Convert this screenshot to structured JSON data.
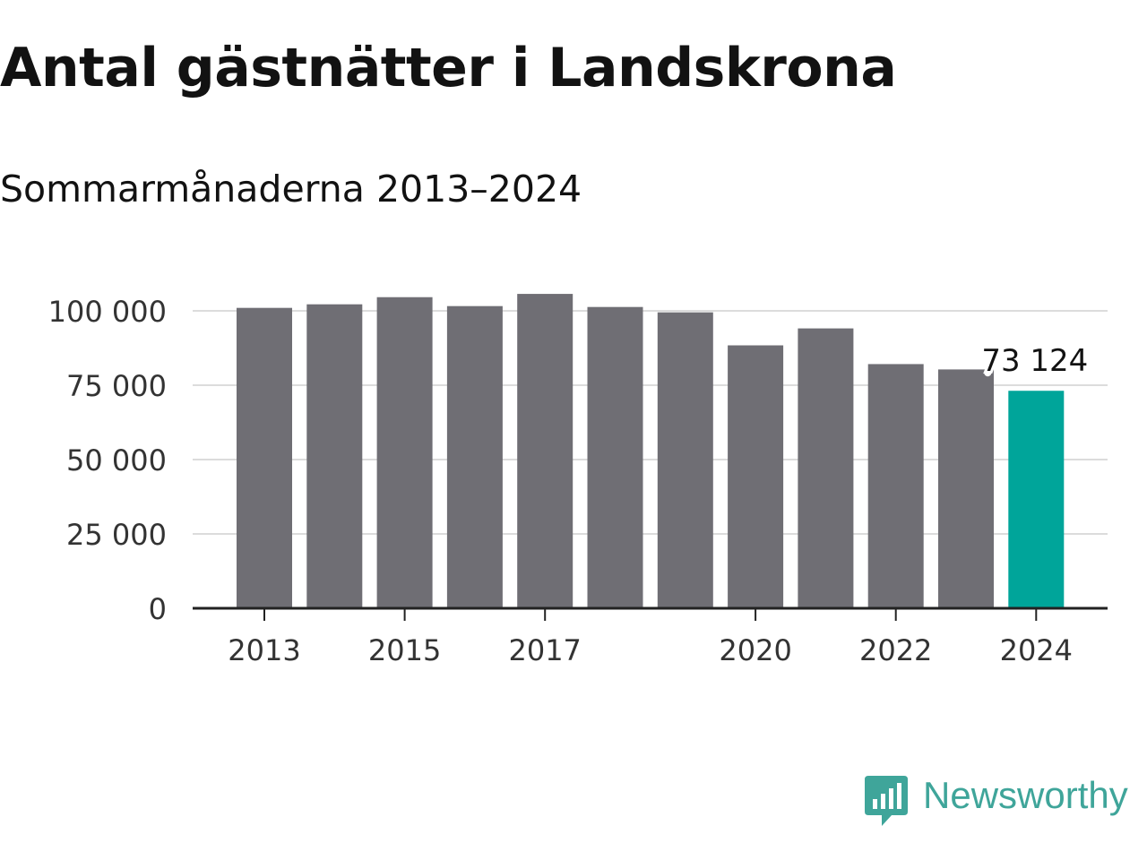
{
  "title": "Antal gästnätter i Landskrona",
  "subtitle": "Sommarmånaderna 2013–2024",
  "chart_data": {
    "type": "bar",
    "categories": [
      "2013",
      "2014",
      "2015",
      "2016",
      "2017",
      "2018",
      "2019",
      "2020",
      "2021",
      "2022",
      "2023",
      "2024"
    ],
    "values": [
      101000,
      102200,
      104600,
      101600,
      105700,
      101300,
      99500,
      88400,
      94100,
      82100,
      80300,
      73124
    ],
    "x_tick_labels": [
      "2013",
      "2015",
      "2017",
      "2020",
      "2022",
      "2024"
    ],
    "y_ticks": [
      0,
      25000,
      50000,
      75000,
      100000
    ],
    "y_tick_labels": [
      "0",
      "25 000",
      "50 000",
      "75 000",
      "100 000"
    ],
    "ylim": [
      0,
      110000
    ],
    "grid": true,
    "highlight_index": 11,
    "annotation": "73 124",
    "colors": {
      "bar": "#6f6e74",
      "highlight": "#00a59a",
      "grid": "#dcdcdc",
      "axis": "#222222"
    }
  },
  "brand": {
    "name": "Newsworthy",
    "color": "#3fa59a",
    "icon": "newsworthy-logo-icon"
  }
}
